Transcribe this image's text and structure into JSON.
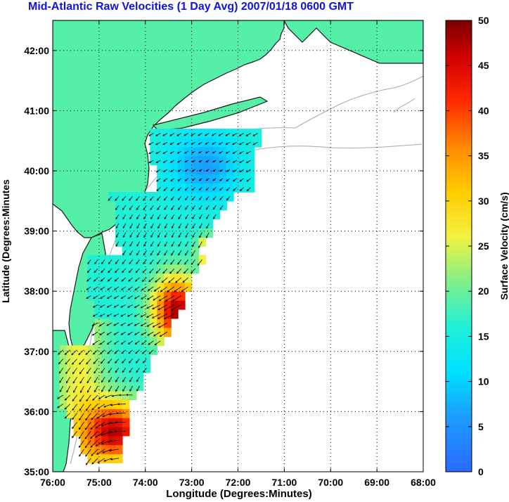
{
  "title": "Mid-Atlantic Raw Velocities (1 Day Avg) 2007/01/18 0600 GMT",
  "axes": {
    "xlabel": "Longitude (Degrees:Minutes)",
    "ylabel": "Latitude (Degrees:Minutes",
    "x_ticks": [
      "76:00",
      "75:00",
      "74:00",
      "73:00",
      "72:00",
      "71:00",
      "70:00",
      "69:00",
      "68:00"
    ],
    "y_ticks": [
      "42:00",
      "41:00",
      "40:00",
      "39:00",
      "38:00",
      "37:00",
      "36:00",
      "35:00"
    ],
    "xlim": [
      -76,
      -68
    ],
    "ylim": [
      35,
      42.5
    ]
  },
  "colorbar": {
    "label": "Surface Velocity (cm/s)",
    "ticks": [
      "50",
      "45",
      "40",
      "35",
      "30",
      "25",
      "20",
      "15",
      "10",
      "5",
      "0"
    ],
    "range": [
      0,
      50
    ],
    "colormap": "jet"
  },
  "colors": {
    "land": "#55f0a8",
    "coast": "#1a1a1a",
    "bathymetry": "#a8a8a8",
    "title": "#1212e0",
    "arrows": "#000000"
  },
  "field": {
    "lon_range": [
      -76,
      -71.5
    ],
    "lat_range": [
      35,
      40.7
    ]
  }
}
